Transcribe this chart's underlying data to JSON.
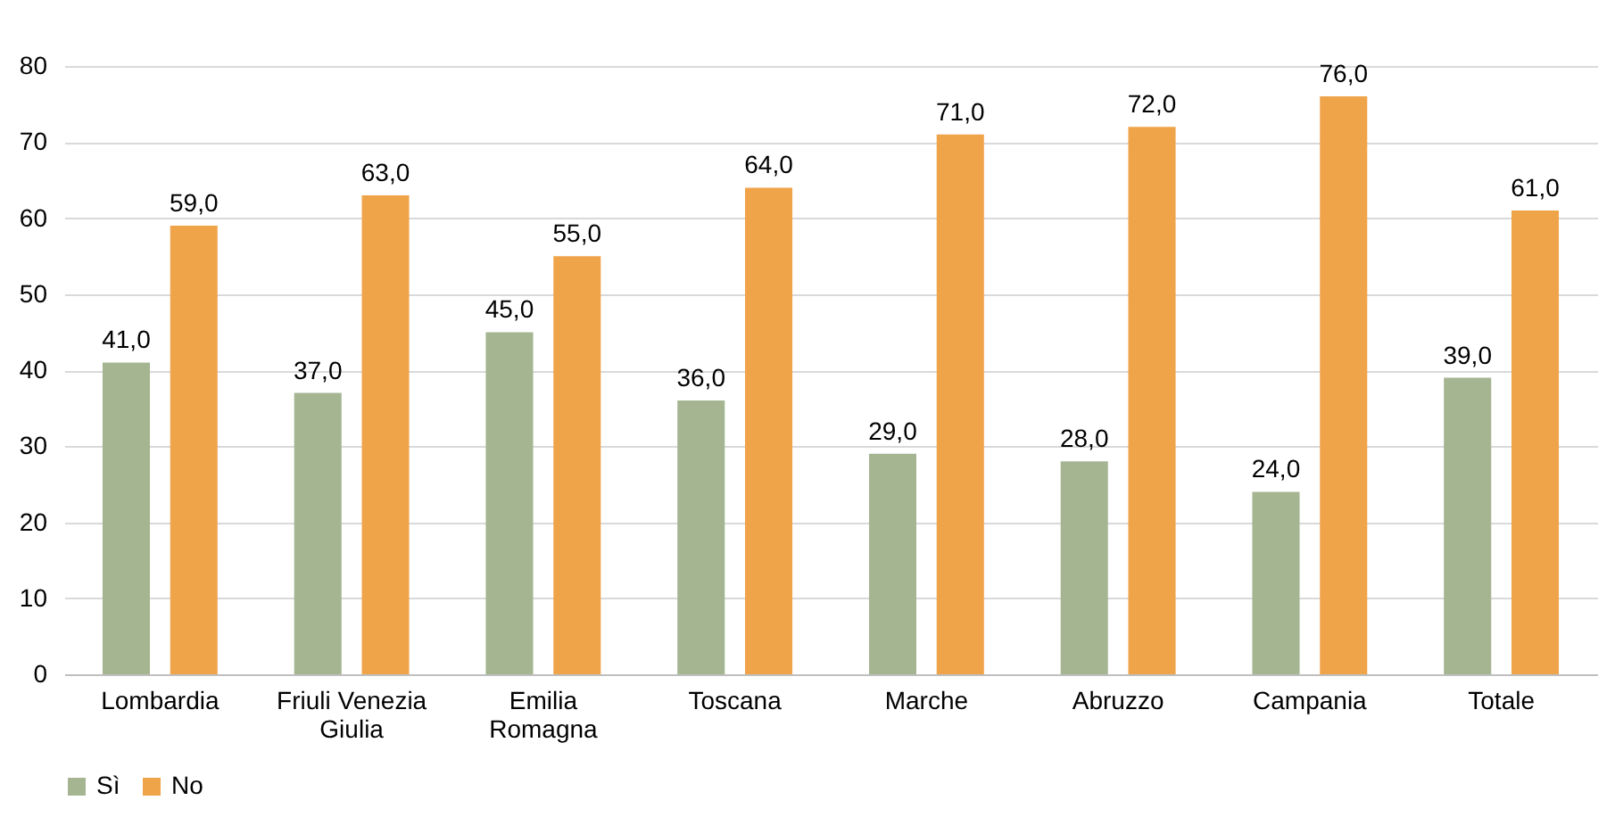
{
  "chart_data": {
    "type": "bar",
    "categories": [
      "Lombardia",
      "Friuli Venezia\nGiulia",
      "Emilia\nRomagna",
      "Toscana",
      "Marche",
      "Abruzzo",
      "Campania",
      "Totale"
    ],
    "series": [
      {
        "name": "Sì",
        "color": "#a5b592",
        "values": [
          41,
          37,
          45,
          36,
          29,
          28,
          24,
          39
        ],
        "value_labels": [
          "41,0",
          "37,0",
          "45,0",
          "36,0",
          "29,0",
          "28,0",
          "24,0",
          "39,0"
        ]
      },
      {
        "name": "No",
        "color": "#f0a44a",
        "values": [
          59,
          63,
          55,
          64,
          71,
          72,
          76,
          61
        ],
        "value_labels": [
          "59,0",
          "63,0",
          "55,0",
          "64,0",
          "71,0",
          "72,0",
          "76,0",
          "61,0"
        ]
      }
    ],
    "ylim": [
      0,
      80
    ],
    "yticks": [
      0,
      10,
      20,
      30,
      40,
      50,
      60,
      70,
      80
    ],
    "grid": "y",
    "legend": "bottom"
  }
}
